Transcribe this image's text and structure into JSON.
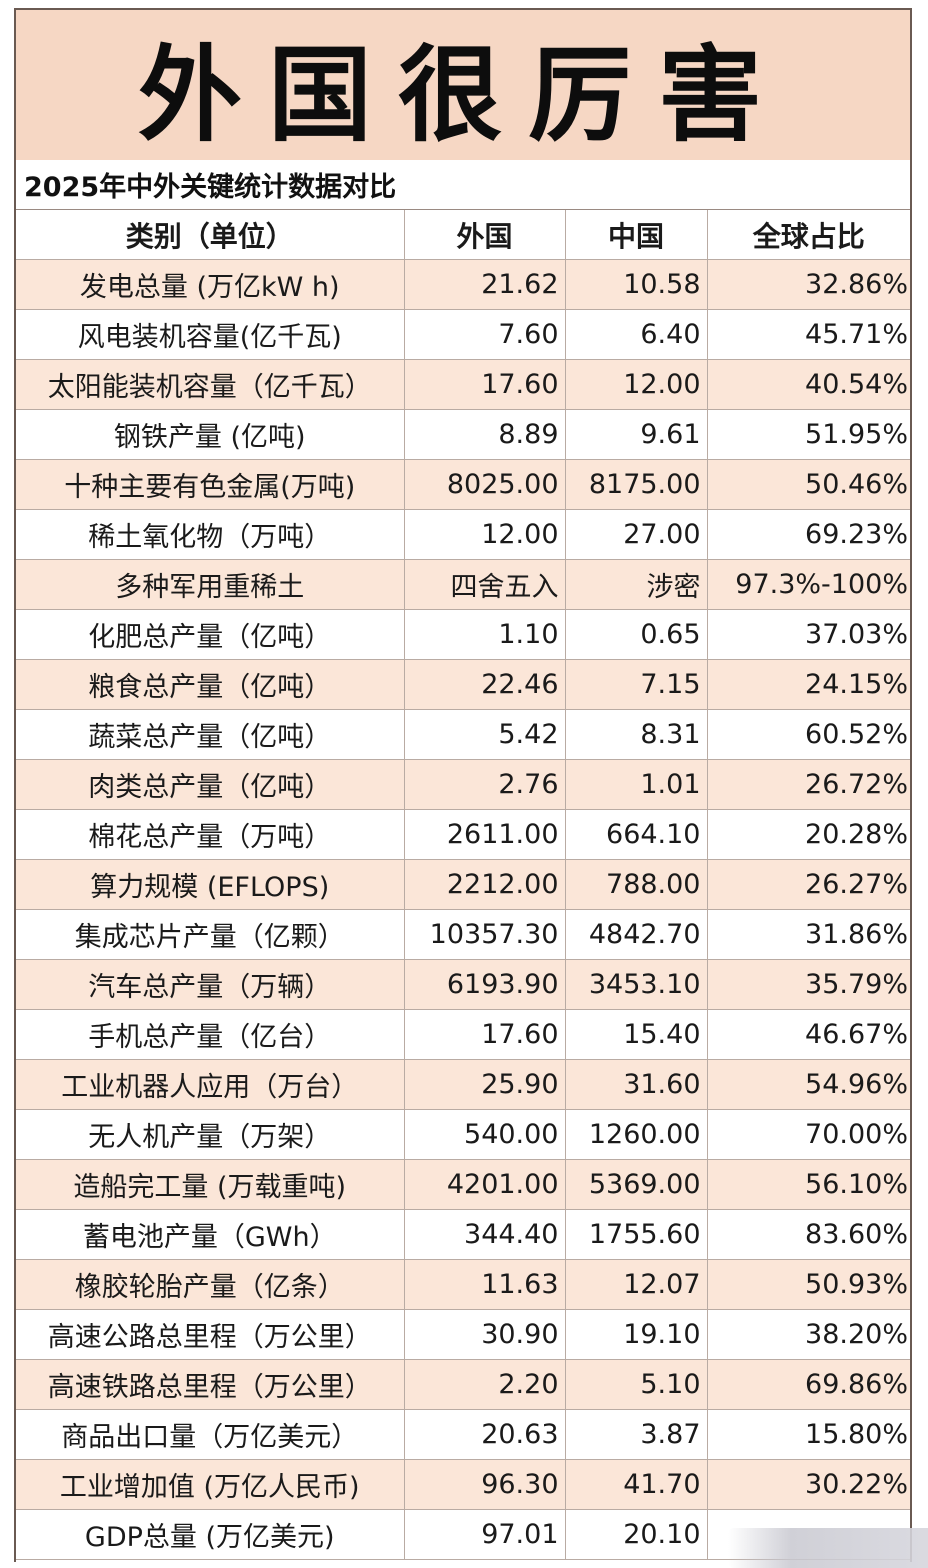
{
  "title": "外国很厉害",
  "subtitle": "2025年中外关键统计数据对比",
  "table": {
    "headers": [
      "类别（单位）",
      "外国",
      "中国",
      "全球占比"
    ],
    "rows": [
      [
        "发电总量 (万亿kW h)",
        "21.62",
        "10.58",
        "32.86%"
      ],
      [
        "风电装机容量(亿千瓦)",
        "7.60",
        "6.40",
        "45.71%"
      ],
      [
        "太阳能装机容量（亿千瓦）",
        "17.60",
        "12.00",
        "40.54%"
      ],
      [
        "钢铁产量 (亿吨)",
        "8.89",
        "9.61",
        "51.95%"
      ],
      [
        "十种主要有色金属(万吨)",
        "8025.00",
        "8175.00",
        "50.46%"
      ],
      [
        "稀土氧化物（万吨）",
        "12.00",
        "27.00",
        "69.23%"
      ],
      [
        "多种军用重稀土",
        "四舍五入",
        "涉密",
        "97.3%-100%"
      ],
      [
        "化肥总产量（亿吨）",
        "1.10",
        "0.65",
        "37.03%"
      ],
      [
        "粮食总产量（亿吨）",
        "22.46",
        "7.15",
        "24.15%"
      ],
      [
        "蔬菜总产量（亿吨）",
        "5.42",
        "8.31",
        "60.52%"
      ],
      [
        "肉类总产量（亿吨）",
        "2.76",
        "1.01",
        "26.72%"
      ],
      [
        "棉花总产量（万吨）",
        "2611.00",
        "664.10",
        "20.28%"
      ],
      [
        "算力规模 (EFLOPS)",
        "2212.00",
        "788.00",
        "26.27%"
      ],
      [
        "集成芯片产量（亿颗）",
        "10357.30",
        "4842.70",
        "31.86%"
      ],
      [
        "汽车总产量（万辆）",
        "6193.90",
        "3453.10",
        "35.79%"
      ],
      [
        "手机总产量（亿台）",
        "17.60",
        "15.40",
        "46.67%"
      ],
      [
        "工业机器人应用（万台）",
        "25.90",
        "31.60",
        "54.96%"
      ],
      [
        "无人机产量（万架）",
        "540.00",
        "1260.00",
        "70.00%"
      ],
      [
        "造船完工量 (万载重吨)",
        "4201.00",
        "5369.00",
        "56.10%"
      ],
      [
        "蓄电池产量（GWh）",
        "344.40",
        "1755.60",
        "83.60%"
      ],
      [
        "橡胶轮胎产量（亿条）",
        "11.63",
        "12.07",
        "50.93%"
      ],
      [
        "高速公路总里程（万公里）",
        "30.90",
        "19.10",
        "38.20%"
      ],
      [
        "高速铁路总里程（万公里）",
        "2.20",
        "5.10",
        "69.86%"
      ],
      [
        "商品出口量（万亿美元）",
        "20.63",
        "3.87",
        "15.80%"
      ],
      [
        "工业增加值 (万亿人民币)",
        "96.30",
        "41.70",
        "30.22%"
      ],
      [
        "GDP总量 (万亿美元)",
        "97.01",
        "20.10",
        ""
      ]
    ]
  },
  "colors": {
    "title_bg": "#f6d7c4",
    "stripe_bg": "#fbe6d8"
  }
}
